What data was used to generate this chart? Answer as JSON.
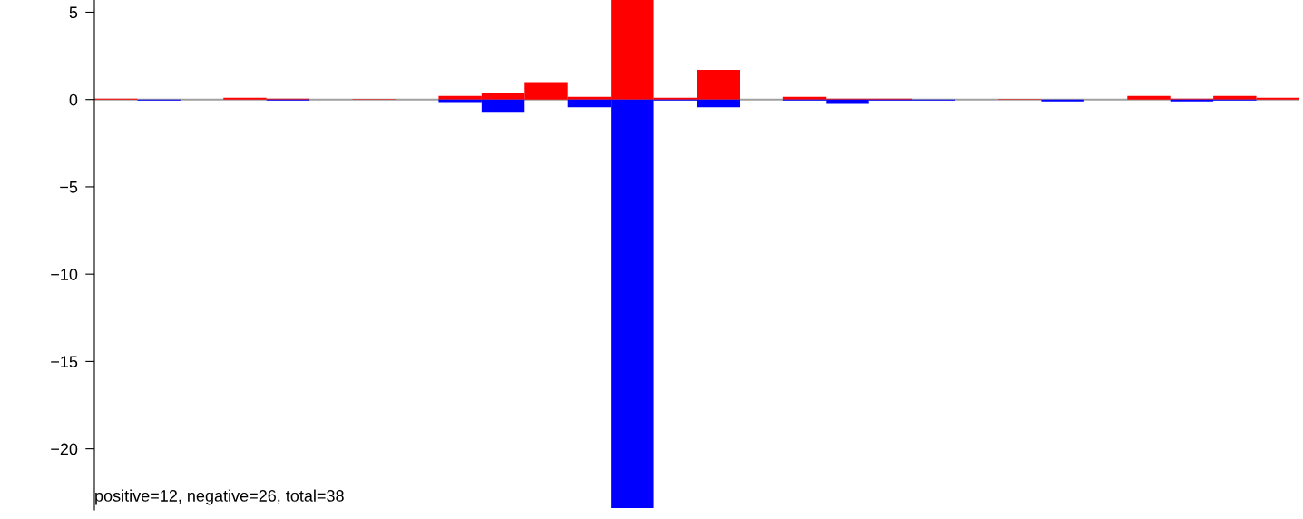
{
  "chart_data": {
    "type": "bar",
    "categories": [
      null,
      null,
      null,
      null,
      null,
      null,
      null,
      null,
      null,
      null,
      null,
      null,
      null,
      null,
      null,
      null,
      null,
      null,
      null,
      null,
      null,
      null,
      null,
      null,
      null,
      null,
      null,
      null
    ],
    "series": [
      {
        "color": "#ff0000",
        "values": [
          0.05,
          0,
          0,
          0.1,
          0.05,
          0,
          0.03,
          0,
          0.2,
          0.35,
          1.0,
          0.15,
          5.7,
          0.1,
          1.7,
          0,
          0.15,
          0.05,
          0.05,
          0,
          0,
          0.03,
          0,
          0,
          0.2,
          0.05,
          0.2,
          0.1
        ]
      },
      {
        "color": "#0000ff",
        "values": [
          0,
          -0.05,
          0,
          0,
          -0.05,
          0,
          0,
          0,
          -0.15,
          -0.7,
          0,
          -0.45,
          -23.4,
          -0.05,
          -0.45,
          0,
          -0.05,
          -0.25,
          -0.05,
          -0.05,
          0,
          0,
          -0.1,
          0,
          0,
          -0.1,
          -0.05,
          0
        ]
      }
    ],
    "ylim": [
      -23.5,
      5.7
    ],
    "yticks": [
      5,
      0,
      -5,
      -10,
      -15,
      -20
    ],
    "ref_lines": [
      {
        "axis": "y",
        "value": 0,
        "color": "#a0a0a0"
      }
    ],
    "annotations": [
      "positive=12, negative=26, total=38"
    ],
    "tick_labels": "y",
    "grid": false,
    "legend": false
  }
}
